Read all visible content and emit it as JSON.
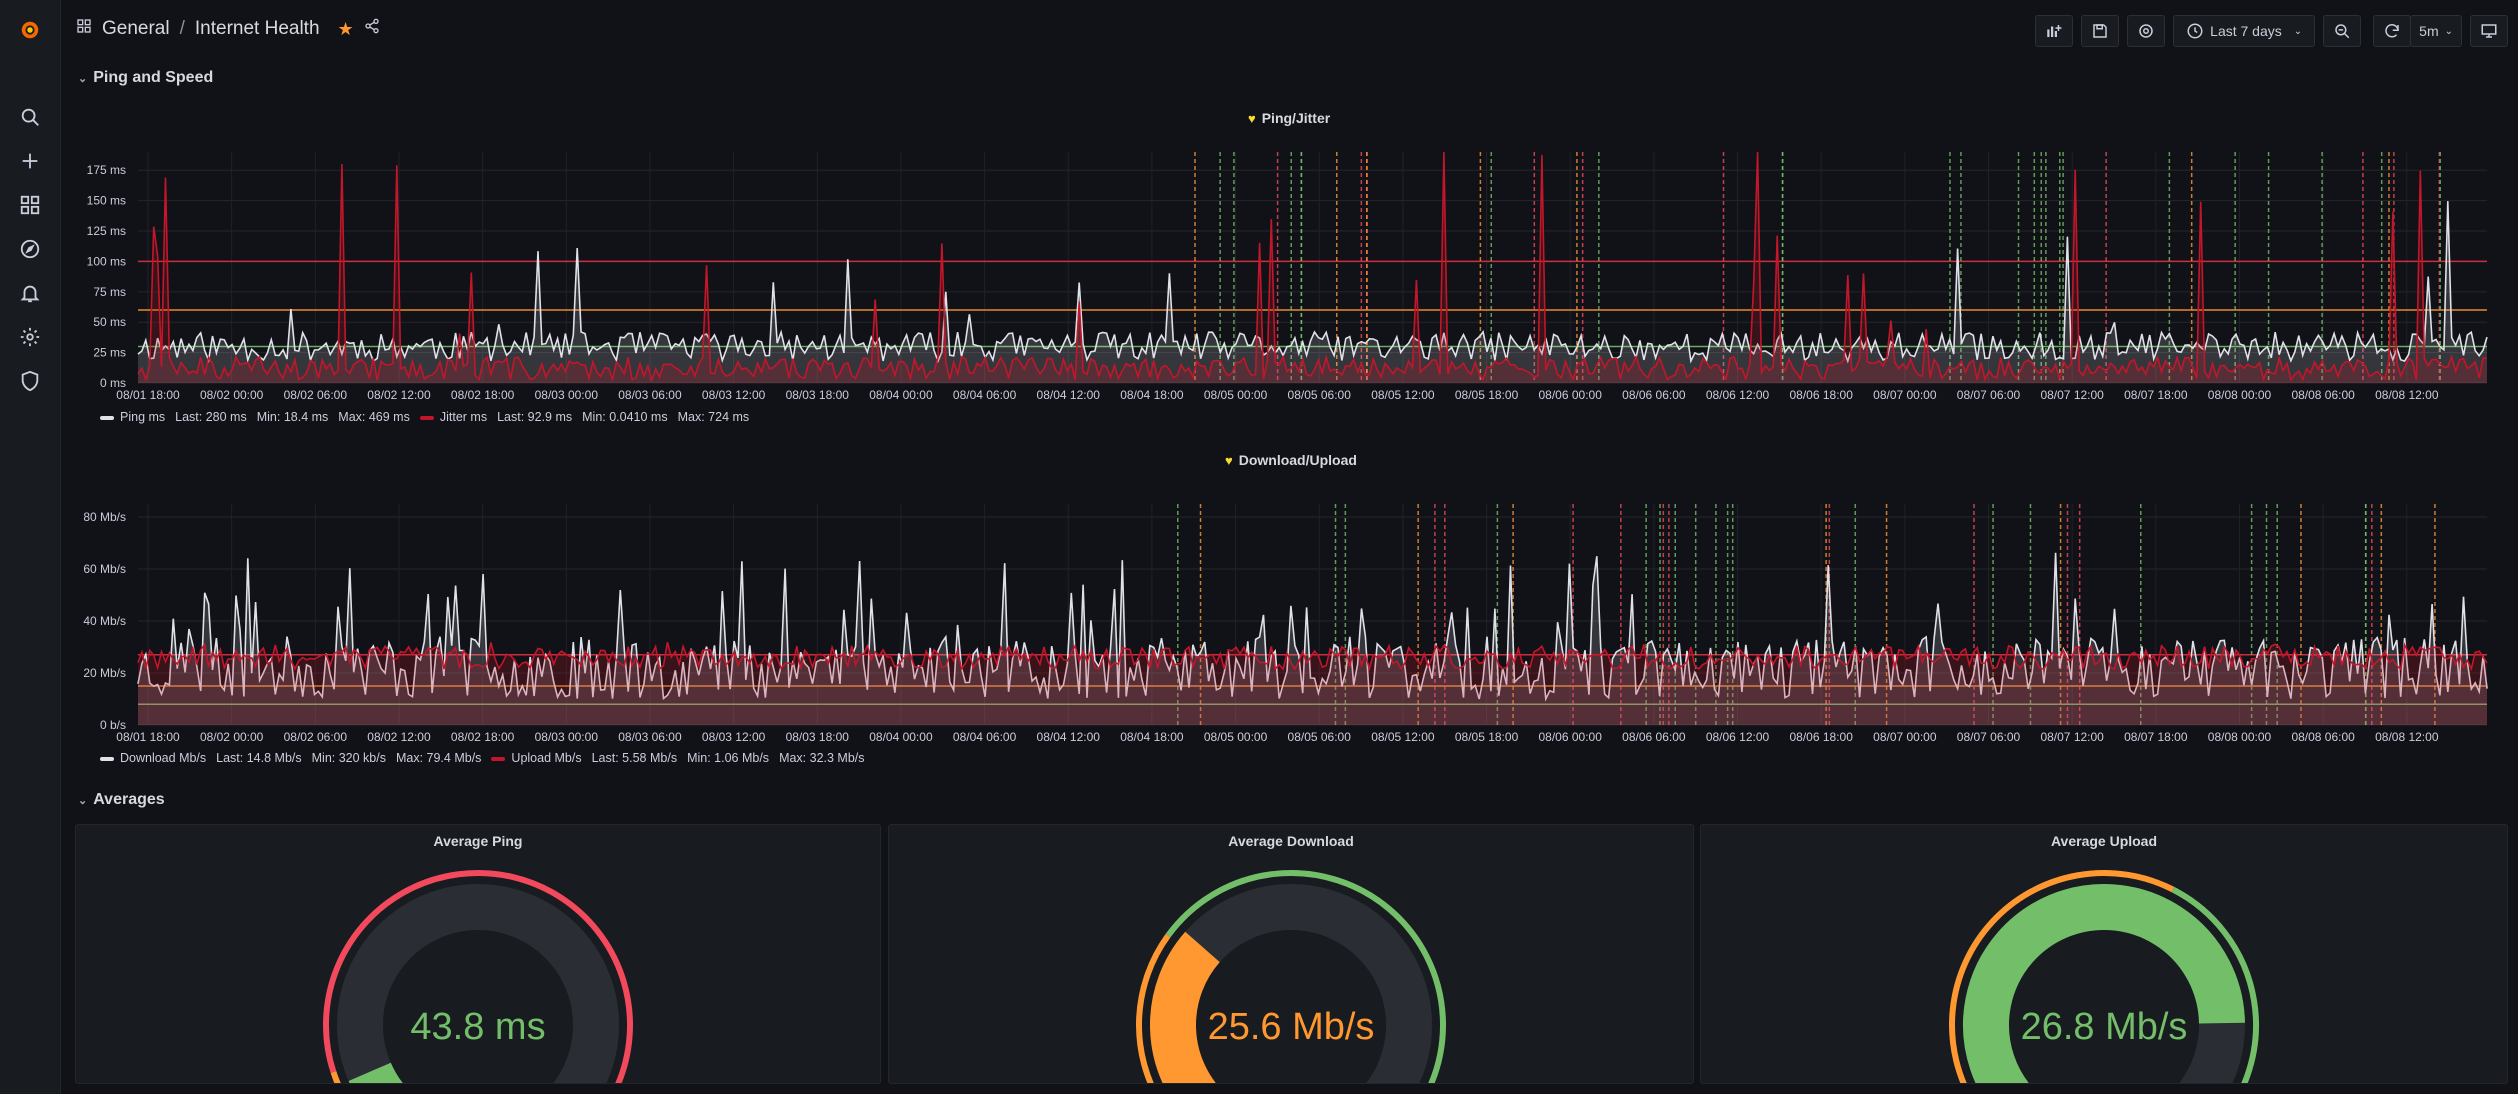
{
  "header": {
    "breadcrumb_folder": "General",
    "breadcrumb_sep": "/",
    "breadcrumb_dashboard": "Internet Health",
    "time_range": "Last 7 days",
    "refresh_interval": "5m"
  },
  "sidebar": {
    "items": [
      {
        "icon": "search-icon"
      },
      {
        "icon": "plus-icon"
      },
      {
        "icon": "dashboards-icon"
      },
      {
        "icon": "explore-icon"
      },
      {
        "icon": "bell-icon"
      },
      {
        "icon": "gear-icon"
      },
      {
        "icon": "shield-icon"
      }
    ]
  },
  "rows": {
    "ping_speed": "Ping and Speed",
    "averages": "Averages"
  },
  "colors": {
    "white_series": "#e0e0e8",
    "red_series": "#c4162a",
    "threshold_red": "#e02f44",
    "threshold_orange": "#ff9830",
    "threshold_green": "#73bf69",
    "gauge_green": "#73bf69",
    "gauge_orange": "#ff9830",
    "gauge_red": "#f2495c"
  },
  "chart_data": [
    {
      "type": "line",
      "title": "Ping/Jitter",
      "x_tick_labels": [
        "08/01 18:00",
        "08/02 00:00",
        "08/02 06:00",
        "08/02 12:00",
        "08/02 18:00",
        "08/03 00:00",
        "08/03 06:00",
        "08/03 12:00",
        "08/03 18:00",
        "08/04 00:00",
        "08/04 06:00",
        "08/04 12:00",
        "08/04 18:00",
        "08/05 00:00",
        "08/05 06:00",
        "08/05 12:00",
        "08/05 18:00",
        "08/06 00:00",
        "08/06 06:00",
        "08/06 12:00",
        "08/06 18:00",
        "08/07 00:00",
        "08/07 06:00",
        "08/07 12:00",
        "08/07 18:00",
        "08/08 00:00",
        "08/08 06:00",
        "08/08 12:00"
      ],
      "y_tick_labels": [
        "0 ms",
        "25 ms",
        "50 ms",
        "75 ms",
        "100 ms",
        "125 ms",
        "150 ms",
        "175 ms"
      ],
      "ylim": [
        0,
        190
      ],
      "thresholds": [
        30,
        60,
        100
      ],
      "series": [
        {
          "name": "Ping ms",
          "last": "280 ms",
          "min": "18.4 ms",
          "max": "469 ms",
          "typical": 30
        },
        {
          "name": "Jitter ms",
          "last": "92.9 ms",
          "min": "0.0410 ms",
          "max": "724 ms",
          "typical": 12
        }
      ],
      "legend": {
        "s1_name": "Ping ms",
        "s1_last": "Last: 280 ms",
        "s1_min": "Min: 18.4 ms",
        "s1_max": "Max: 469 ms",
        "s2_name": "Jitter ms",
        "s2_last": "Last: 92.9 ms",
        "s2_min": "Min: 0.0410 ms",
        "s2_max": "Max: 724 ms"
      }
    },
    {
      "type": "line",
      "title": "Download/Upload",
      "x_tick_labels": [
        "08/01 18:00",
        "08/02 00:00",
        "08/02 06:00",
        "08/02 12:00",
        "08/02 18:00",
        "08/03 00:00",
        "08/03 06:00",
        "08/03 12:00",
        "08/03 18:00",
        "08/04 00:00",
        "08/04 06:00",
        "08/04 12:00",
        "08/04 18:00",
        "08/05 00:00",
        "08/05 06:00",
        "08/05 12:00",
        "08/05 18:00",
        "08/06 00:00",
        "08/06 06:00",
        "08/06 12:00",
        "08/06 18:00",
        "08/07 00:00",
        "08/07 06:00",
        "08/07 12:00",
        "08/07 18:00",
        "08/08 00:00",
        "08/08 06:00",
        "08/08 12:00"
      ],
      "y_tick_labels": [
        "0 b/s",
        "20 Mb/s",
        "40 Mb/s",
        "60 Mb/s",
        "80 Mb/s"
      ],
      "ylim": [
        0,
        85
      ],
      "thresholds": [
        8,
        15,
        27
      ],
      "series": [
        {
          "name": "Download Mb/s",
          "last": "14.8 Mb/s",
          "min": "320 kb/s",
          "max": "79.4 Mb/s",
          "typical": 22
        },
        {
          "name": "Upload Mb/s",
          "last": "5.58 Mb/s",
          "min": "1.06 Mb/s",
          "max": "32.3 Mb/s",
          "typical": 26
        }
      ],
      "legend": {
        "s1_name": "Download Mb/s",
        "s1_last": "Last: 14.8 Mb/s",
        "s1_min": "Min: 320 kb/s",
        "s1_max": "Max: 79.4 Mb/s",
        "s2_name": "Upload Mb/s",
        "s2_last": "Last: 5.58 Mb/s",
        "s2_min": "Min: 1.06 Mb/s",
        "s2_max": "Max: 32.3 Mb/s"
      }
    }
  ],
  "gauges": [
    {
      "title": "Average Ping",
      "value_text": "43.8 ms",
      "fraction": 0.08,
      "value_color": "#73bf69"
    },
    {
      "title": "Average Download",
      "value_text": "25.6 Mb/s",
      "fraction": 0.32,
      "value_color": "#ff9830"
    },
    {
      "title": "Average Upload",
      "value_text": "26.8 Mb/s",
      "fraction": 0.83,
      "value_color": "#73bf69"
    }
  ]
}
